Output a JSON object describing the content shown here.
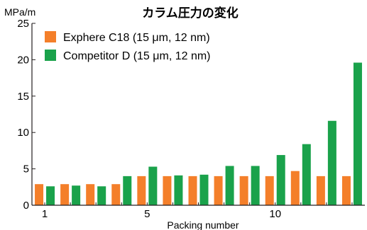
{
  "chart_data": {
    "type": "bar",
    "title": "カラム圧力の変化",
    "ylabel": "MPa/m",
    "xlabel": "Packing number",
    "ylim": [
      0,
      25
    ],
    "yticks": [
      "0",
      "5",
      "10",
      "15",
      "20",
      "25"
    ],
    "categories": [
      1,
      2,
      3,
      4,
      5,
      6,
      7,
      8,
      9,
      10,
      11,
      12,
      13
    ],
    "xtick_labels": {
      "1": "1",
      "5": "5",
      "10": "10"
    },
    "legend_position": "top-left",
    "grid": false,
    "series": [
      {
        "name": "Exphere C18 (15 μm, 12 nm)",
        "color": "#f47f2a",
        "values": [
          2.9,
          2.9,
          2.9,
          2.9,
          4.0,
          4.0,
          4.0,
          4.0,
          4.0,
          4.0,
          4.7,
          4.0,
          4.0
        ]
      },
      {
        "name": "Competitor D (15 μm, 12 nm)",
        "color": "#1aa24b",
        "values": [
          2.6,
          2.7,
          2.6,
          4.0,
          5.3,
          4.1,
          4.2,
          5.4,
          5.4,
          6.9,
          8.4,
          11.6,
          19.6
        ]
      }
    ]
  }
}
